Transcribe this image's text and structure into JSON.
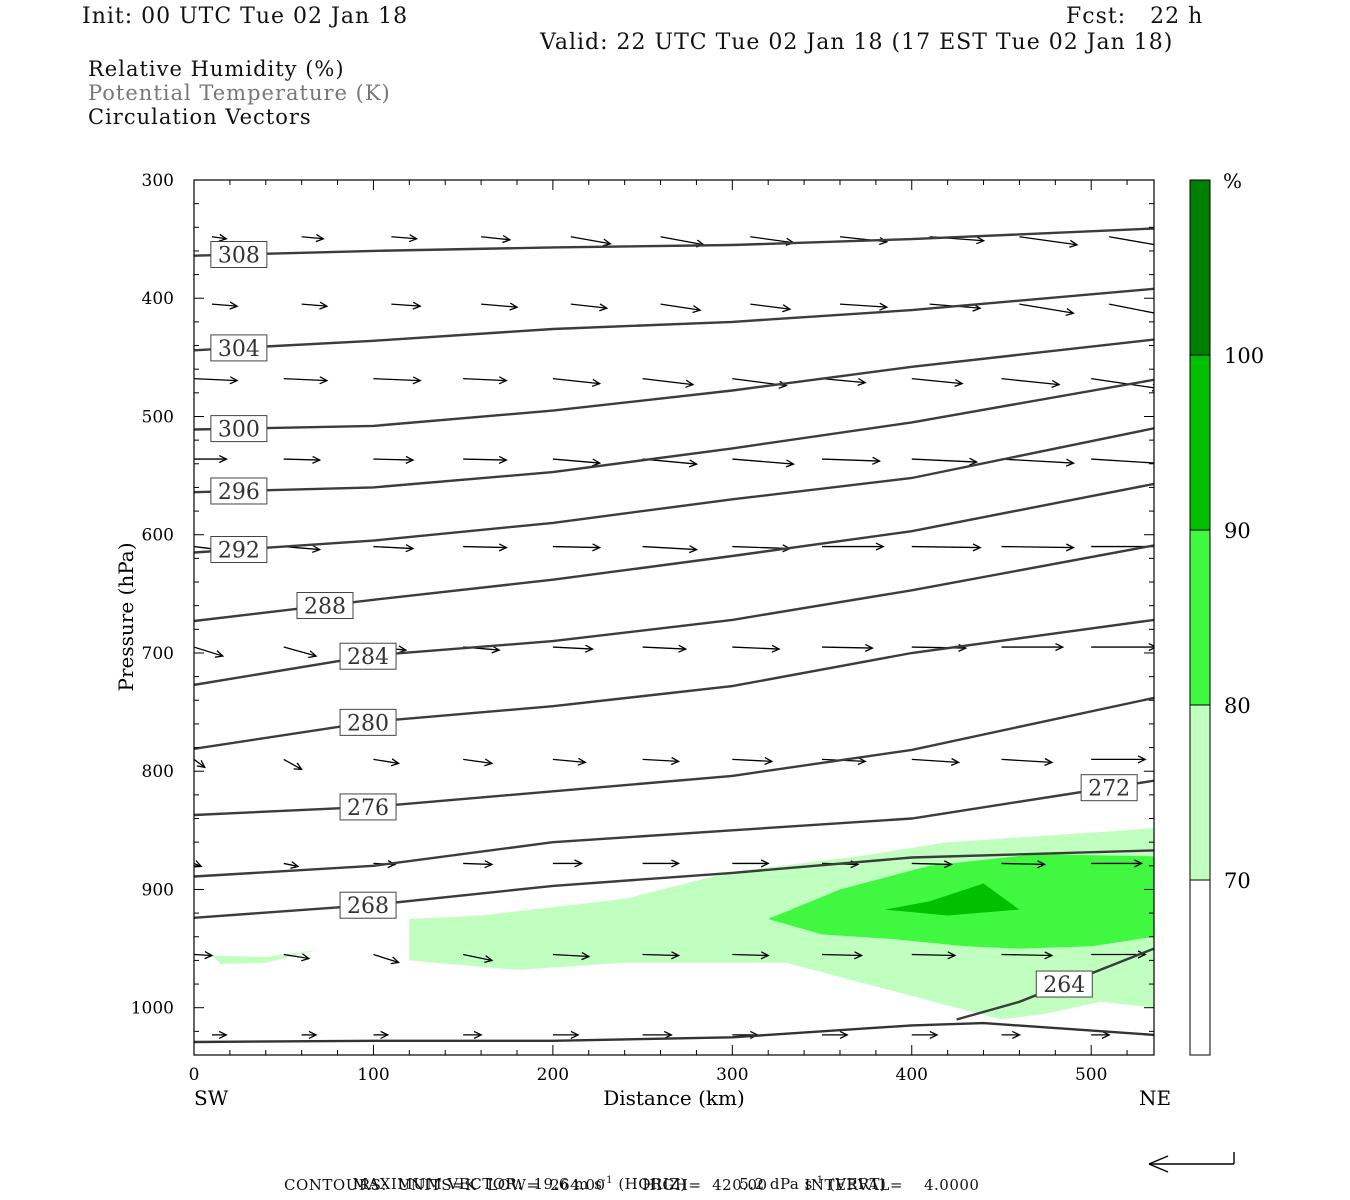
{
  "header": {
    "init": "Init: 00 UTC Tue 02 Jan 18",
    "fcst": "Fcst:   22 h",
    "valid": "Valid: 22 UTC Tue 02 Jan 18 (17 EST Tue 02 Jan 18)"
  },
  "fields": [
    "Relative Humidity (%)",
    "Potential Temperature (K)",
    "Circulation Vectors"
  ],
  "footer": {
    "max_vector_label": "MAXIMUM VECTOR:",
    "max_horiz": "19.6 m s",
    "horiz_tag": "(HORIZ)",
    "max_vert": "5.2 dPa s",
    "vert_tag": "(VERT)",
    "exponent": "-1",
    "contours": "CONTOURS:  UNITS=K  LOW=  264.00       HIGH=  420.00       INTERVAL=    4.0000"
  },
  "chart_data": {
    "type": "cross-section contour",
    "xlabel": "Distance (km)",
    "ylabel": "Pressure (hPa)",
    "xlim": [
      0,
      535
    ],
    "ylim": [
      1040,
      300
    ],
    "x_ticks": [
      0,
      100,
      200,
      300,
      400,
      500
    ],
    "y_ticks": [
      300,
      400,
      500,
      600,
      700,
      800,
      900,
      1000
    ],
    "left_end_label": "SW",
    "right_end_label": "NE",
    "colorbar": {
      "unit": "%",
      "levels": [
        {
          "value": 70,
          "color": "#c0ffc0"
        },
        {
          "value": 80,
          "color": "#3ff83f"
        },
        {
          "value": 90,
          "color": "#00c000"
        },
        {
          "value": 100,
          "color": "#008000"
        }
      ]
    },
    "theta_contours": [
      {
        "theta": 308,
        "label_x": 25,
        "points": [
          [
            0,
            364
          ],
          [
            100,
            360
          ],
          [
            200,
            357
          ],
          [
            300,
            355
          ],
          [
            400,
            350
          ],
          [
            535,
            341
          ]
        ]
      },
      {
        "theta": 304,
        "label_x": 25,
        "points": [
          [
            0,
            444
          ],
          [
            100,
            436
          ],
          [
            200,
            426
          ],
          [
            300,
            420
          ],
          [
            400,
            410
          ],
          [
            535,
            392
          ]
        ]
      },
      {
        "theta": 300,
        "label_x": 25,
        "points": [
          [
            0,
            511
          ],
          [
            100,
            508
          ],
          [
            200,
            495
          ],
          [
            300,
            478
          ],
          [
            400,
            458
          ],
          [
            535,
            435
          ]
        ]
      },
      {
        "theta": 296,
        "label_x": 25,
        "points": [
          [
            0,
            564
          ],
          [
            100,
            560
          ],
          [
            200,
            547
          ],
          [
            300,
            527
          ],
          [
            400,
            505
          ],
          [
            535,
            469
          ]
        ]
      },
      {
        "theta": 292,
        "label_x": 25,
        "points": [
          [
            0,
            615
          ],
          [
            100,
            605
          ],
          [
            200,
            590
          ],
          [
            300,
            570
          ],
          [
            400,
            552
          ],
          [
            535,
            510
          ]
        ]
      },
      {
        "theta": 288,
        "label_x": 73,
        "points": [
          [
            0,
            673
          ],
          [
            100,
            655
          ],
          [
            200,
            638
          ],
          [
            300,
            618
          ],
          [
            400,
            597
          ],
          [
            535,
            557
          ]
        ]
      },
      {
        "theta": 284,
        "label_x": 97,
        "points": [
          [
            0,
            727
          ],
          [
            100,
            702
          ],
          [
            200,
            690
          ],
          [
            300,
            672
          ],
          [
            400,
            647
          ],
          [
            535,
            609
          ]
        ]
      },
      {
        "theta": 280,
        "label_x": 97,
        "points": [
          [
            0,
            781
          ],
          [
            100,
            758
          ],
          [
            200,
            745
          ],
          [
            300,
            728
          ],
          [
            400,
            700
          ],
          [
            535,
            672
          ]
        ]
      },
      {
        "theta": 276,
        "label_x": 97,
        "points": [
          [
            0,
            837
          ],
          [
            100,
            830
          ],
          [
            200,
            817
          ],
          [
            300,
            804
          ],
          [
            400,
            782
          ],
          [
            535,
            738
          ]
        ]
      },
      {
        "theta": 272,
        "label_x": 510,
        "points": [
          [
            0,
            889
          ],
          [
            100,
            880
          ],
          [
            200,
            860
          ],
          [
            300,
            850
          ],
          [
            400,
            840
          ],
          [
            535,
            808
          ]
        ]
      },
      {
        "theta": 268,
        "label_x": 97,
        "points": [
          [
            0,
            924
          ],
          [
            100,
            913
          ],
          [
            200,
            897
          ],
          [
            300,
            886
          ],
          [
            400,
            873
          ],
          [
            535,
            867
          ]
        ]
      },
      {
        "theta": 264,
        "label_x": 485,
        "points": [
          [
            425,
            1010
          ],
          [
            460,
            995
          ],
          [
            535,
            950
          ]
        ]
      }
    ],
    "surface_line": [
      [
        0,
        1029
      ],
      [
        100,
        1028
      ],
      [
        200,
        1028
      ],
      [
        300,
        1025
      ],
      [
        400,
        1015
      ],
      [
        440,
        1013
      ],
      [
        535,
        1023
      ]
    ],
    "rh_regions": [
      {
        "level": 70,
        "points": [
          [
            120,
            925
          ],
          [
            160,
            922
          ],
          [
            240,
            908
          ],
          [
            300,
            885
          ],
          [
            370,
            872
          ],
          [
            420,
            860
          ],
          [
            470,
            855
          ],
          [
            520,
            850
          ],
          [
            535,
            848
          ],
          [
            535,
            1000
          ],
          [
            505,
            995
          ],
          [
            475,
            1005
          ],
          [
            450,
            1010
          ],
          [
            425,
            1000
          ],
          [
            375,
            980
          ],
          [
            330,
            962
          ],
          [
            240,
            962
          ],
          [
            180,
            968
          ],
          [
            120,
            960
          ]
        ]
      },
      {
        "level": 70,
        "points": [
          [
            10,
            956
          ],
          [
            40,
            957
          ],
          [
            70,
            951
          ],
          [
            40,
            962
          ],
          [
            15,
            963
          ]
        ]
      },
      {
        "level": 80,
        "points": [
          [
            320,
            925
          ],
          [
            360,
            900
          ],
          [
            410,
            880
          ],
          [
            470,
            870
          ],
          [
            535,
            872
          ],
          [
            535,
            940
          ],
          [
            500,
            948
          ],
          [
            460,
            950
          ],
          [
            430,
            948
          ],
          [
            390,
            942
          ],
          [
            350,
            938
          ]
        ]
      },
      {
        "level": 90,
        "points": [
          [
            385,
            917
          ],
          [
            410,
            910
          ],
          [
            440,
            895
          ],
          [
            460,
            917
          ],
          [
            420,
            922
          ]
        ]
      }
    ],
    "vector_rows": [
      {
        "p": 348,
        "xs": [
          10,
          60,
          110,
          160,
          210,
          260,
          310,
          360,
          410,
          460,
          510
        ],
        "dx": [
          8,
          12,
          14,
          16,
          22,
          24,
          24,
          26,
          30,
          32,
          32
        ],
        "dp": [
          2,
          2,
          2,
          3,
          7,
          8,
          6,
          5,
          4,
          8,
          10
        ]
      },
      {
        "p": 405,
        "xs": [
          10,
          60,
          110,
          160,
          210,
          260,
          310,
          360,
          410,
          460,
          510
        ],
        "dx": [
          14,
          14,
          16,
          20,
          20,
          22,
          22,
          26,
          28,
          30,
          34
        ],
        "dp": [
          2,
          2,
          2,
          3,
          4,
          6,
          5,
          3,
          4,
          9,
          12
        ]
      },
      {
        "p": 468,
        "xs": [
          0,
          50,
          100,
          150,
          200,
          250,
          300,
          350,
          400,
          450,
          500
        ],
        "dx": [
          24,
          24,
          26,
          24,
          26,
          28,
          30,
          24,
          28,
          32,
          38
        ],
        "dp": [
          2,
          2,
          2,
          2,
          5,
          6,
          7,
          4,
          5,
          6,
          10
        ]
      },
      {
        "p": 536,
        "xs": [
          0,
          50,
          100,
          150,
          200,
          250,
          300,
          350,
          400,
          450,
          500
        ],
        "dx": [
          18,
          20,
          22,
          24,
          26,
          30,
          34,
          32,
          36,
          40,
          44
        ],
        "dp": [
          0,
          1,
          1,
          1,
          4,
          5,
          5,
          2,
          3,
          4,
          5
        ]
      },
      {
        "p": 610,
        "xs": [
          0,
          50,
          100,
          150,
          200,
          250,
          300,
          350,
          400,
          450,
          500
        ],
        "dx": [
          18,
          20,
          22,
          24,
          26,
          30,
          32,
          34,
          38,
          40,
          42
        ],
        "dp": [
          4,
          3,
          2,
          1,
          1,
          3,
          2,
          0,
          1,
          1,
          0
        ]
      },
      {
        "p": 695,
        "xs": [
          0,
          50,
          100,
          150,
          200,
          250,
          300,
          350,
          400,
          450,
          500
        ],
        "dx": [
          16,
          18,
          18,
          20,
          22,
          24,
          26,
          28,
          30,
          34,
          36
        ],
        "dp": [
          9,
          9,
          3,
          3,
          2,
          2,
          2,
          1,
          1,
          0,
          0
        ]
      },
      {
        "p": 790,
        "xs": [
          0,
          50,
          100,
          150,
          200,
          250,
          300,
          350,
          400,
          450,
          500
        ],
        "dx": [
          6,
          10,
          14,
          16,
          18,
          20,
          22,
          24,
          26,
          28,
          30
        ],
        "dp": [
          8,
          10,
          4,
          4,
          3,
          2,
          2,
          2,
          3,
          3,
          0
        ]
      },
      {
        "p": 878,
        "xs": [
          0,
          50,
          100,
          150,
          200,
          250,
          300,
          350,
          400,
          450,
          500
        ],
        "dx": [
          4,
          8,
          12,
          16,
          16,
          20,
          20,
          20,
          22,
          24,
          28
        ],
        "dp": [
          3,
          3,
          1,
          1,
          0,
          0,
          0,
          1,
          1,
          1,
          0
        ]
      },
      {
        "p": 955,
        "xs": [
          0,
          50,
          100,
          150,
          200,
          250,
          300,
          350,
          400,
          450,
          500
        ],
        "dx": [
          10,
          14,
          14,
          16,
          20,
          20,
          20,
          22,
          24,
          28,
          30
        ],
        "dp": [
          1,
          4,
          8,
          6,
          2,
          1,
          1,
          1,
          1,
          1,
          0
        ]
      },
      {
        "p": 1023,
        "xs": [
          10,
          60,
          100,
          150,
          200,
          250,
          300,
          350,
          400,
          450,
          500
        ],
        "dx": [
          8,
          8,
          8,
          10,
          14,
          16,
          14,
          14,
          14,
          10,
          10
        ],
        "dp": [
          0,
          0,
          0,
          0,
          0,
          0,
          0,
          0,
          0,
          0,
          0
        ]
      }
    ]
  }
}
